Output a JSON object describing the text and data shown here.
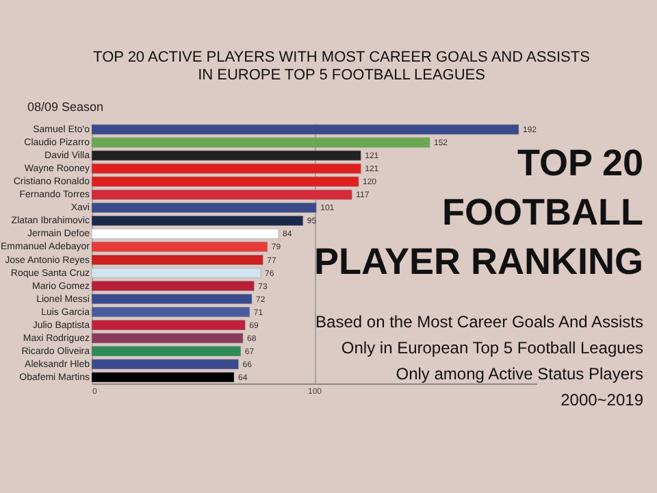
{
  "chart_data": {
    "type": "bar",
    "orientation": "horizontal",
    "title": "TOP 20 ACTIVE PLAYERS WITH MOST CAREER GOALS AND ASSISTS\nIN EUROPE TOP 5 FOOTBALL LEAGUES",
    "subtitle": "08/09 Season",
    "categories": [
      "Samuel Eto'o",
      "Claudio Pizarro",
      "David Villa",
      "Wayne Rooney",
      "Cristiano Ronaldo",
      "Fernando Torres",
      "Xavi",
      "Zlatan Ibrahimovic",
      "Jermain Defoe",
      "Emmanuel Adebayor",
      "Jose Antonio Reyes",
      "Roque Santa Cruz",
      "Mario Gomez",
      "Lionel Messi",
      "Luis Garcia",
      "Julio Baptista",
      "Maxi Rodriguez",
      "Ricardo Oliveira",
      "Aleksandr Hleb",
      "Obafemi Martins"
    ],
    "values": [
      192,
      152,
      121,
      121,
      120,
      117,
      101,
      95,
      84,
      79,
      77,
      76,
      73,
      72,
      71,
      69,
      68,
      67,
      66,
      64
    ],
    "colors": [
      "#3b4a8c",
      "#6aa84f",
      "#222222",
      "#e02020",
      "#e02020",
      "#d42a3a",
      "#3a4a8a",
      "#1a2a4a",
      "#ffffff",
      "#e83a3a",
      "#cc1f1f",
      "#d0e4f0",
      "#b8203a",
      "#3b4a8c",
      "#4a5a9c",
      "#c0203a",
      "#8a3a5a",
      "#2e8b57",
      "#3b4a8c",
      "#000000"
    ],
    "xlim": [
      0,
      200
    ],
    "xticks": [
      0,
      100
    ],
    "grid": "x",
    "data_labels": true,
    "annotations": [
      "TOP 20",
      "FOOTBALL",
      "PLAYER RANKING",
      "Based on the Most Career Goals And Assists",
      "Only in European Top 5 Football Leagues",
      "Only among Active Status Players",
      "2000~2019"
    ]
  }
}
